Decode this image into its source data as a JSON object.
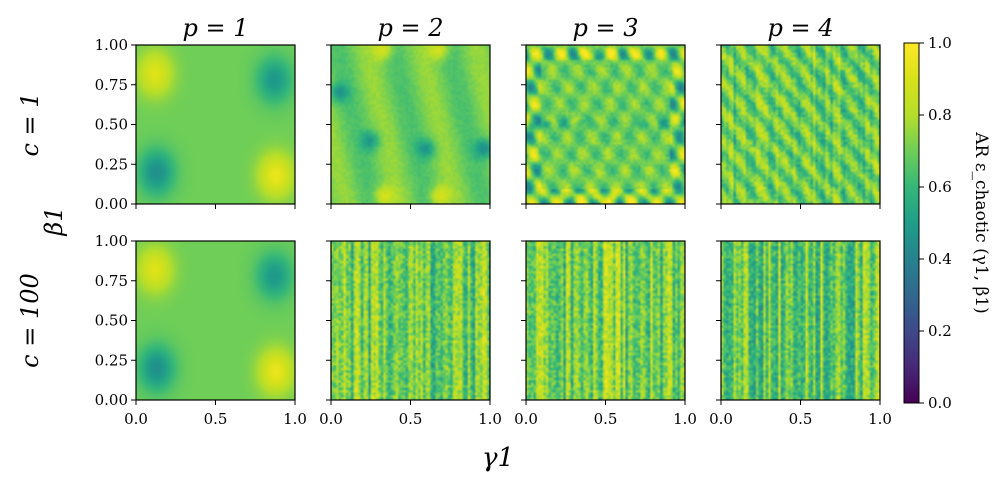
{
  "chart_data": {
    "type": "heatmap",
    "layout": "grid 2 rows x 4 columns",
    "column_titles": [
      "p = 1",
      "p = 2",
      "p = 3",
      "p = 4"
    ],
    "row_labels": [
      "c = 1",
      "c = 100"
    ],
    "xlabel": "γ1",
    "ylabel": "β1",
    "xlim": [
      0.0,
      1.0
    ],
    "ylim": [
      0.0,
      1.0
    ],
    "xticks": [
      "0.0",
      "0.5",
      "1.0"
    ],
    "yticks": [
      "0.00",
      "0.25",
      "0.50",
      "0.75",
      "1.00"
    ],
    "colorbar": {
      "label": "AR ε_chaotic (γ1, β1)",
      "colormap": "viridis",
      "range": [
        0.0,
        1.0
      ],
      "ticks": [
        "0.0",
        "0.2",
        "0.4",
        "0.6",
        "0.8",
        "1.0"
      ]
    },
    "panels": [
      {
        "row": 0,
        "col": 0,
        "p": 1,
        "c": 1,
        "texture": "smooth",
        "features": [
          {
            "kind": "high",
            "gamma": 0.12,
            "beta": 0.82,
            "value": 0.92
          },
          {
            "kind": "low",
            "gamma": 0.87,
            "beta": 0.78,
            "value": 0.48
          },
          {
            "kind": "low",
            "gamma": 0.13,
            "beta": 0.2,
            "value": 0.45
          },
          {
            "kind": "high",
            "gamma": 0.88,
            "beta": 0.18,
            "value": 0.95
          }
        ]
      },
      {
        "row": 0,
        "col": 1,
        "p": 2,
        "c": 1,
        "texture": "smooth-structured",
        "features": [
          {
            "kind": "high",
            "gamma": 0.33,
            "beta": 0.97,
            "value": 0.9
          },
          {
            "kind": "high",
            "gamma": 0.68,
            "beta": 0.97,
            "value": 0.9
          },
          {
            "kind": "high",
            "gamma": 0.33,
            "beta": 0.05,
            "value": 0.9
          },
          {
            "kind": "high",
            "gamma": 0.68,
            "beta": 0.05,
            "value": 0.9
          },
          {
            "kind": "low",
            "gamma": 0.25,
            "beta": 0.4,
            "value": 0.5
          },
          {
            "kind": "low",
            "gamma": 0.6,
            "beta": 0.35,
            "value": 0.5
          },
          {
            "kind": "low",
            "gamma": 0.97,
            "beta": 0.35,
            "value": 0.45
          },
          {
            "kind": "low",
            "gamma": 0.05,
            "beta": 0.7,
            "value": 0.5
          }
        ]
      },
      {
        "row": 0,
        "col": 2,
        "p": 3,
        "c": 1,
        "texture": "edge-structured",
        "features": [
          {
            "kind": "high",
            "gamma": 0.5,
            "beta": 0.04,
            "value": 0.92
          },
          {
            "kind": "high",
            "gamma": 0.5,
            "beta": 0.96,
            "value": 0.85
          },
          {
            "kind": "low",
            "gamma": 0.05,
            "beta": 0.5,
            "value": 0.5
          },
          {
            "kind": "low",
            "gamma": 0.95,
            "beta": 0.5,
            "value": 0.5
          }
        ]
      },
      {
        "row": 0,
        "col": 3,
        "p": 4,
        "c": 1,
        "texture": "fine-vertical-stripes"
      },
      {
        "row": 1,
        "col": 0,
        "p": 1,
        "c": 100,
        "texture": "smooth",
        "features": [
          {
            "kind": "high",
            "gamma": 0.12,
            "beta": 0.82,
            "value": 0.92
          },
          {
            "kind": "low",
            "gamma": 0.87,
            "beta": 0.78,
            "value": 0.48
          },
          {
            "kind": "low",
            "gamma": 0.13,
            "beta": 0.2,
            "value": 0.45
          },
          {
            "kind": "high",
            "gamma": 0.88,
            "beta": 0.18,
            "value": 0.95
          }
        ]
      },
      {
        "row": 1,
        "col": 1,
        "p": 2,
        "c": 100,
        "texture": "noise-vertical"
      },
      {
        "row": 1,
        "col": 2,
        "p": 3,
        "c": 100,
        "texture": "noise-vertical"
      },
      {
        "row": 1,
        "col": 3,
        "p": 4,
        "c": 100,
        "texture": "noise-vertical"
      }
    ]
  }
}
